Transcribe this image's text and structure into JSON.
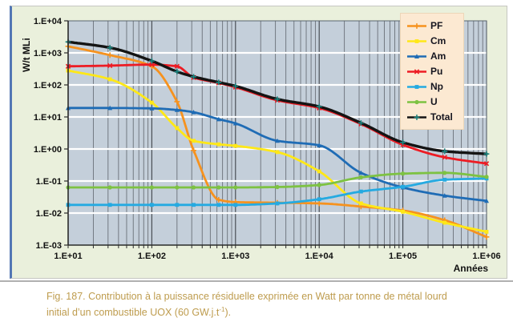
{
  "figure": {
    "caption_line1": "Fig. 187. Contribution à la puissance résiduelle exprimée en Watt par tonne de métal lourd",
    "caption_line2_pre": "initial d’un combustible UOX (60 GW.j.t",
    "caption_sup": "-1",
    "caption_end": ")."
  },
  "chart_data": {
    "type": "line",
    "title": "",
    "xlabel": "Années",
    "ylabel": "W/t MLi",
    "x_scale": "log",
    "y_scale": "log",
    "xlim": [
      10,
      1000000
    ],
    "ylim": [
      0.001,
      10000
    ],
    "x_tick_labels": [
      "1.E+01",
      "1.E+02",
      "1.E+03",
      "1.E+04",
      "1.E+05",
      "1.E+06"
    ],
    "y_tick_labels": [
      "1.E+04",
      "1.E+03",
      "1.E+02",
      "1.E+01",
      "1.E+00",
      "1.E-01",
      "1.E-02",
      "1.E-03"
    ],
    "grid": {
      "vertical_minor_log": true,
      "horizontal_major_white": true
    },
    "legend_position": "top-right-inside",
    "plot_bg": "#C4CFDA",
    "x": [
      10,
      31.6,
      100,
      200,
      316,
      630,
      1000,
      3160,
      10000,
      31600,
      100000,
      316000,
      1000000
    ],
    "series": [
      {
        "name": "PF",
        "color": "#F6921E",
        "marker": "plus",
        "values": [
          1600,
          850,
          380,
          30,
          0.9,
          0.026,
          0.022,
          0.021,
          0.02,
          0.016,
          0.012,
          0.006,
          0.0018
        ]
      },
      {
        "name": "Cm",
        "color": "#FFE817",
        "marker": "square",
        "values": [
          280,
          150,
          28,
          4.5,
          1.8,
          1.4,
          1.25,
          0.8,
          0.2,
          0.02,
          0.011,
          0.005,
          0.0026
        ]
      },
      {
        "name": "Am",
        "color": "#1F6CB5",
        "marker": "triangle",
        "values": [
          19,
          19,
          18.5,
          16.5,
          14,
          8.5,
          6.3,
          1.8,
          1.3,
          0.18,
          0.063,
          0.035,
          0.024
        ]
      },
      {
        "name": "Pu",
        "color": "#ED1C24",
        "marker": "x",
        "values": [
          380,
          400,
          430,
          380,
          170,
          115,
          85,
          33,
          19,
          6,
          1.35,
          0.55,
          0.35
        ]
      },
      {
        "name": "Np",
        "color": "#25AAE1",
        "marker": "square",
        "values": [
          0.018,
          0.018,
          0.018,
          0.018,
          0.018,
          0.018,
          0.018,
          0.02,
          0.027,
          0.047,
          0.066,
          0.11,
          0.12
        ]
      },
      {
        "name": "U",
        "color": "#7DC242",
        "marker": "circle",
        "values": [
          0.063,
          0.063,
          0.063,
          0.063,
          0.063,
          0.063,
          0.063,
          0.065,
          0.075,
          0.13,
          0.17,
          0.18,
          0.135
        ]
      },
      {
        "name": "Total",
        "color": "#141414",
        "marker": "plus",
        "marker_color": "#1B8580",
        "values": [
          2200,
          1450,
          560,
          260,
          180,
          120,
          92,
          36,
          21,
          6.5,
          1.6,
          0.85,
          0.7
        ]
      }
    ]
  }
}
